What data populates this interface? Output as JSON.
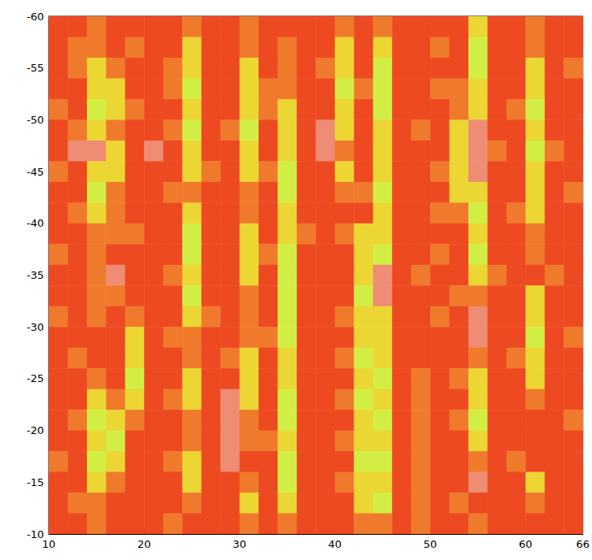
{
  "chart_data": {
    "type": "heatmap",
    "x": [
      11,
      13,
      15,
      17,
      19,
      21,
      23,
      25,
      27,
      29,
      31,
      33,
      35,
      37,
      39,
      41,
      43,
      45,
      47,
      49,
      51,
      53,
      55,
      57,
      59,
      61,
      63,
      65
    ],
    "y": [
      -59,
      -57,
      -55,
      -53,
      -51,
      -49,
      -47,
      -45,
      -43,
      -41,
      -39,
      -37,
      -35,
      -33,
      -31,
      -29,
      -27,
      -25,
      -23,
      -21,
      -19,
      -17,
      -15,
      -13,
      -11
    ],
    "levels": [
      1,
      2,
      3,
      4,
      5
    ],
    "colors": [
      "#ee4a22",
      "#f07a2c",
      "#ee8c74",
      "#ecd634",
      "#d2ee44"
    ],
    "cells": [
      [
        1,
        1,
        2,
        1,
        1,
        1,
        1,
        2,
        1,
        1,
        2,
        1,
        1,
        1,
        1,
        2,
        1,
        2,
        1,
        1,
        1,
        1,
        4,
        1,
        1,
        2,
        1,
        1
      ],
      [
        1,
        2,
        2,
        1,
        2,
        1,
        1,
        4,
        1,
        1,
        2,
        1,
        2,
        1,
        1,
        4,
        1,
        4,
        1,
        1,
        2,
        1,
        5,
        1,
        1,
        2,
        1,
        1
      ],
      [
        1,
        2,
        4,
        2,
        1,
        1,
        2,
        4,
        1,
        1,
        4,
        1,
        2,
        1,
        2,
        4,
        1,
        5,
        1,
        1,
        1,
        1,
        5,
        1,
        1,
        4,
        1,
        2
      ],
      [
        1,
        1,
        4,
        4,
        1,
        1,
        2,
        5,
        1,
        1,
        4,
        2,
        2,
        1,
        1,
        5,
        2,
        5,
        1,
        1,
        2,
        2,
        4,
        1,
        1,
        4,
        1,
        1
      ],
      [
        2,
        1,
        5,
        4,
        2,
        1,
        1,
        4,
        1,
        1,
        4,
        2,
        4,
        1,
        1,
        4,
        1,
        5,
        1,
        1,
        1,
        2,
        4,
        1,
        2,
        5,
        1,
        1
      ],
      [
        1,
        2,
        4,
        2,
        1,
        1,
        2,
        5,
        1,
        2,
        5,
        1,
        4,
        1,
        3,
        4,
        1,
        4,
        1,
        2,
        1,
        4,
        3,
        1,
        1,
        4,
        1,
        1
      ],
      [
        1,
        3,
        3,
        4,
        1,
        3,
        1,
        4,
        1,
        1,
        4,
        1,
        4,
        1,
        3,
        2,
        1,
        4,
        1,
        1,
        1,
        4,
        3,
        2,
        1,
        5,
        2,
        1
      ],
      [
        2,
        1,
        4,
        4,
        1,
        1,
        1,
        4,
        2,
        1,
        4,
        2,
        5,
        1,
        1,
        4,
        1,
        4,
        1,
        1,
        2,
        4,
        3,
        1,
        1,
        4,
        1,
        1
      ],
      [
        1,
        1,
        5,
        2,
        1,
        1,
        2,
        2,
        1,
        1,
        2,
        1,
        5,
        1,
        1,
        2,
        2,
        5,
        1,
        1,
        1,
        4,
        4,
        1,
        1,
        4,
        1,
        2
      ],
      [
        1,
        2,
        4,
        2,
        1,
        1,
        1,
        4,
        1,
        1,
        2,
        1,
        4,
        1,
        1,
        1,
        1,
        4,
        1,
        1,
        2,
        2,
        5,
        1,
        2,
        4,
        1,
        1
      ],
      [
        1,
        1,
        2,
        2,
        2,
        1,
        1,
        5,
        1,
        1,
        4,
        1,
        4,
        2,
        1,
        2,
        4,
        4,
        1,
        1,
        1,
        1,
        4,
        1,
        1,
        2,
        1,
        1
      ],
      [
        2,
        1,
        2,
        1,
        1,
        1,
        1,
        5,
        1,
        1,
        4,
        2,
        5,
        1,
        1,
        1,
        4,
        5,
        1,
        1,
        2,
        1,
        5,
        1,
        1,
        2,
        1,
        1
      ],
      [
        1,
        1,
        2,
        3,
        1,
        1,
        2,
        4,
        1,
        1,
        4,
        1,
        5,
        1,
        1,
        1,
        4,
        3,
        1,
        2,
        1,
        1,
        4,
        2,
        1,
        1,
        2,
        1
      ],
      [
        1,
        1,
        2,
        2,
        1,
        1,
        1,
        5,
        1,
        1,
        2,
        1,
        5,
        1,
        1,
        1,
        5,
        3,
        1,
        1,
        1,
        2,
        2,
        1,
        1,
        4,
        1,
        1
      ],
      [
        2,
        1,
        2,
        1,
        2,
        1,
        1,
        4,
        2,
        1,
        2,
        1,
        5,
        1,
        1,
        2,
        4,
        4,
        1,
        1,
        2,
        1,
        3,
        1,
        1,
        4,
        1,
        1
      ],
      [
        1,
        1,
        1,
        1,
        4,
        1,
        2,
        2,
        1,
        1,
        2,
        2,
        5,
        1,
        1,
        1,
        4,
        4,
        1,
        1,
        1,
        1,
        3,
        1,
        1,
        5,
        1,
        2
      ],
      [
        1,
        2,
        1,
        1,
        4,
        1,
        1,
        2,
        1,
        2,
        4,
        1,
        4,
        1,
        1,
        2,
        5,
        4,
        1,
        1,
        1,
        1,
        2,
        1,
        2,
        4,
        1,
        1
      ],
      [
        1,
        1,
        2,
        1,
        5,
        1,
        1,
        4,
        1,
        1,
        4,
        1,
        4,
        1,
        1,
        1,
        4,
        5,
        1,
        2,
        1,
        2,
        4,
        1,
        1,
        4,
        1,
        1
      ],
      [
        1,
        1,
        4,
        2,
        4,
        1,
        2,
        4,
        1,
        3,
        4,
        1,
        5,
        1,
        1,
        2,
        5,
        4,
        1,
        2,
        1,
        1,
        4,
        1,
        1,
        2,
        1,
        1
      ],
      [
        1,
        2,
        5,
        4,
        2,
        1,
        1,
        2,
        1,
        3,
        2,
        1,
        5,
        1,
        1,
        1,
        4,
        5,
        1,
        2,
        1,
        2,
        5,
        1,
        1,
        1,
        1,
        2
      ],
      [
        1,
        1,
        4,
        5,
        1,
        1,
        1,
        2,
        1,
        3,
        2,
        2,
        4,
        1,
        1,
        2,
        4,
        4,
        1,
        2,
        1,
        1,
        4,
        1,
        1,
        1,
        1,
        1
      ],
      [
        2,
        1,
        5,
        4,
        1,
        1,
        2,
        4,
        1,
        3,
        1,
        1,
        5,
        1,
        1,
        1,
        5,
        5,
        1,
        2,
        1,
        1,
        2,
        1,
        2,
        1,
        1,
        1
      ],
      [
        1,
        1,
        4,
        2,
        1,
        1,
        1,
        4,
        1,
        1,
        2,
        1,
        5,
        1,
        1,
        2,
        4,
        4,
        1,
        2,
        1,
        1,
        3,
        1,
        1,
        4,
        1,
        1
      ],
      [
        1,
        2,
        2,
        1,
        1,
        1,
        1,
        2,
        1,
        1,
        4,
        1,
        4,
        1,
        1,
        1,
        4,
        5,
        1,
        2,
        1,
        2,
        1,
        1,
        1,
        2,
        1,
        1
      ],
      [
        1,
        1,
        2,
        1,
        1,
        1,
        2,
        1,
        1,
        1,
        2,
        1,
        2,
        1,
        1,
        1,
        2,
        2,
        1,
        2,
        1,
        1,
        2,
        1,
        1,
        1,
        1,
        1
      ]
    ],
    "xlim": [
      10,
      66
    ],
    "ylim": [
      -60,
      -10
    ],
    "xticks": [
      10,
      20,
      30,
      40,
      50,
      60
    ],
    "yticks": [
      -60,
      -55,
      -50,
      -45,
      -40,
      -35,
      -30,
      -25,
      -20,
      -15,
      -10
    ],
    "grid": false
  }
}
